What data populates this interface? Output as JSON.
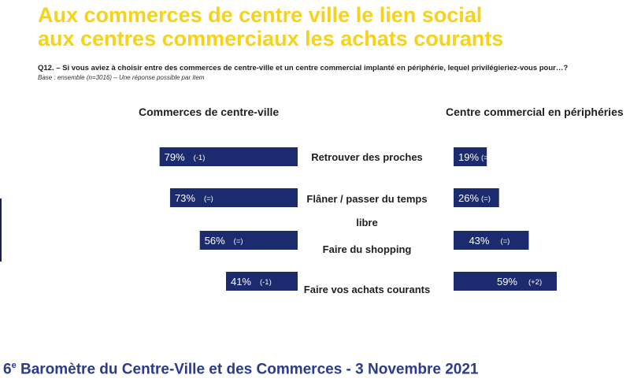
{
  "title_line1": "Aux commerces de centre ville le lien social",
  "title_line2": "aux centres commerciaux les achats courants",
  "question": "Q12. – Si vous aviez à choisir entre des commerces de centre-ville et un centre commercial implanté en périphérie, lequel privilégieriez-vous pour…?",
  "base": "Base : ensemble (n=3016) – Une réponse possible par item",
  "footer": {
    "prefix": "6",
    "sup": "e",
    "text": " Baromètre du Centre-Ville et des Commerces - 3 Novembre 2021"
  },
  "colors": {
    "bar": "#1c2a6e",
    "title": "#f7d21a",
    "footer": "#2b3a8c"
  },
  "chart_data": {
    "type": "bar",
    "left_header": "Commerces de centre-ville",
    "right_header": "Centre commercial en périphéries",
    "categories": [
      "Retrouver des proches",
      "Flâner / passer du temps libre",
      "Faire du shopping",
      "Faire vos achats courants"
    ],
    "series": [
      {
        "name": "Commerces de centre-ville",
        "values": [
          79,
          73,
          56,
          41
        ],
        "labels": [
          "79%",
          "73%",
          "56%",
          "41%"
        ],
        "changes": [
          "(-1)",
          "(=)",
          "(=)",
          "(-1)"
        ]
      },
      {
        "name": "Centre commercial en périphéries",
        "values": [
          19,
          26,
          43,
          59
        ],
        "labels": [
          "19%",
          "26%",
          "43%",
          "59%"
        ],
        "changes": [
          "(=)",
          "(=)",
          "(=)",
          "(+2)"
        ]
      }
    ]
  }
}
